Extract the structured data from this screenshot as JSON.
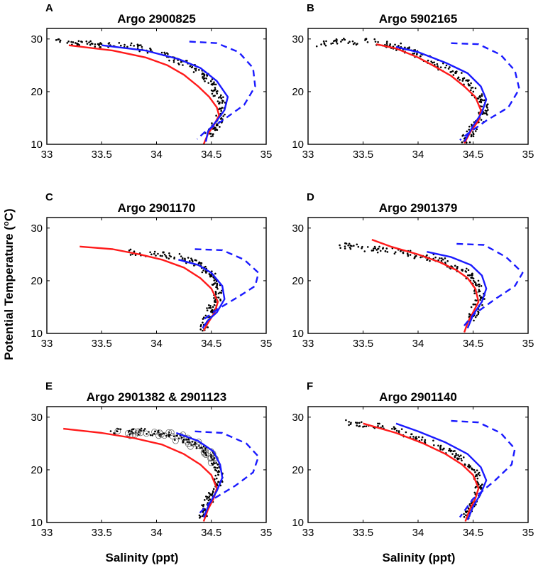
{
  "figure": {
    "ylabel_main": "Potential Temperature (",
    "ylabel_sup_o": "o",
    "ylabel_unit": "C)",
    "xlabel": "Salinity (ppt)"
  },
  "colors": {
    "red": "#ff1a1a",
    "blue": "#1a1aff",
    "dots": "#000000"
  },
  "chart_data": [
    {
      "type": "line",
      "letter": "A",
      "title": "Argo 2900825",
      "xlim": [
        33,
        35
      ],
      "ylim": [
        10,
        32
      ],
      "xticks": [
        "33",
        "33.5",
        "34",
        "34.5",
        "35"
      ],
      "xtick_values": [
        33,
        33.5,
        34,
        34.5,
        35
      ],
      "yticks": [
        "10",
        "20",
        "30"
      ],
      "ytick_values": [
        10,
        20,
        30
      ],
      "series": [
        {
          "name": "red",
          "style": "solid",
          "x": [
            33.2,
            33.6,
            33.9,
            34.1,
            34.25,
            34.38,
            34.48,
            34.55,
            34.57,
            34.52,
            34.47,
            34.43
          ],
          "y": [
            28.8,
            27.8,
            26.5,
            25.0,
            23.2,
            21.0,
            19.0,
            17.0,
            15.5,
            13.5,
            12.0,
            10.0
          ]
        },
        {
          "name": "blue",
          "style": "solid",
          "x": [
            33.5,
            33.9,
            34.2,
            34.4,
            34.55,
            34.65,
            34.62,
            34.55,
            34.47,
            34.45
          ],
          "y": [
            28.8,
            27.8,
            26.2,
            24.5,
            22.0,
            19.0,
            16.5,
            14.5,
            12.5,
            10.5
          ]
        },
        {
          "name": "blue-dashed",
          "style": "dashed",
          "x": [
            34.3,
            34.55,
            34.75,
            34.88,
            34.9,
            34.8,
            34.6,
            34.45,
            34.37
          ],
          "y": [
            29.5,
            29.2,
            27.5,
            24.5,
            21.0,
            17.5,
            14.5,
            12.5,
            11.0
          ]
        }
      ],
      "scatter": {
        "spread": 0.08,
        "markers": "dots",
        "points": [
          [
            33.05,
            29.5
          ],
          [
            33.3,
            29.3
          ],
          [
            33.5,
            29.0
          ],
          [
            33.8,
            28.5
          ],
          [
            34.0,
            27.5
          ],
          [
            34.2,
            26.0
          ],
          [
            34.35,
            24.5
          ],
          [
            34.45,
            23.0
          ],
          [
            34.52,
            21.0
          ],
          [
            34.57,
            19.0
          ],
          [
            34.6,
            17.0
          ],
          [
            34.58,
            15.0
          ],
          [
            34.53,
            13.0
          ],
          [
            34.48,
            11.5
          ]
        ]
      }
    },
    {
      "type": "line",
      "letter": "B",
      "title": "Argo 5902165",
      "xlim": [
        33,
        35
      ],
      "ylim": [
        10,
        32
      ],
      "xticks": [
        "33",
        "33.5",
        "34",
        "34.5",
        "35"
      ],
      "xtick_values": [
        33,
        33.5,
        34,
        34.5,
        35
      ],
      "yticks": [
        "10",
        "20",
        "30"
      ],
      "ytick_values": [
        10,
        20,
        30
      ],
      "series": [
        {
          "name": "red",
          "style": "solid",
          "x": [
            33.62,
            33.8,
            34.0,
            34.15,
            34.3,
            34.42,
            34.52,
            34.57,
            34.55,
            34.48,
            34.42
          ],
          "y": [
            29.0,
            28.2,
            26.5,
            24.8,
            23.0,
            21.0,
            19.0,
            16.5,
            14.5,
            12.5,
            10.2
          ]
        },
        {
          "name": "blue",
          "style": "solid",
          "x": [
            33.8,
            34.0,
            34.25,
            34.45,
            34.57,
            34.62,
            34.58,
            34.5,
            34.42
          ],
          "y": [
            28.5,
            27.5,
            25.5,
            23.5,
            21.0,
            18.5,
            16.0,
            13.5,
            10.5
          ]
        },
        {
          "name": "blue-dashed",
          "style": "dashed",
          "x": [
            34.3,
            34.55,
            34.75,
            34.88,
            34.92,
            34.82,
            34.62,
            34.45,
            34.38
          ],
          "y": [
            29.2,
            29.0,
            27.0,
            24.0,
            20.5,
            17.0,
            14.5,
            12.0,
            10.8
          ]
        }
      ],
      "scatter": {
        "spread": 0.09,
        "markers": "dots",
        "points": [
          [
            33.1,
            29.0
          ],
          [
            33.3,
            29.5
          ],
          [
            33.6,
            29.5
          ],
          [
            33.8,
            28.8
          ],
          [
            33.95,
            27.5
          ],
          [
            34.1,
            26.0
          ],
          [
            34.25,
            24.5
          ],
          [
            34.4,
            22.5
          ],
          [
            34.5,
            20.5
          ],
          [
            34.58,
            18.5
          ],
          [
            34.6,
            16.5
          ],
          [
            34.55,
            14.5
          ],
          [
            34.48,
            12.0
          ],
          [
            34.42,
            10.5
          ]
        ]
      }
    },
    {
      "type": "line",
      "letter": "C",
      "title": "Argo 2901170",
      "xlim": [
        33,
        35
      ],
      "ylim": [
        10,
        32
      ],
      "xticks": [
        "33",
        "33.5",
        "34",
        "34.5",
        "35"
      ],
      "xtick_values": [
        33,
        33.5,
        34,
        34.5,
        35
      ],
      "yticks": [
        "10",
        "20",
        "30"
      ],
      "ytick_values": [
        10,
        20,
        30
      ],
      "series": [
        {
          "name": "red",
          "style": "solid",
          "x": [
            33.3,
            33.6,
            33.85,
            34.05,
            34.25,
            34.4,
            34.5,
            34.56,
            34.53,
            34.47,
            34.43
          ],
          "y": [
            26.5,
            26.0,
            25.0,
            24.0,
            22.5,
            20.5,
            18.5,
            16.0,
            14.0,
            12.0,
            10.5
          ]
        },
        {
          "name": "blue",
          "style": "solid",
          "x": [
            34.2,
            34.38,
            34.5,
            34.6,
            34.62,
            34.55,
            34.47,
            34.42
          ],
          "y": [
            24.0,
            23.0,
            21.5,
            19.0,
            16.5,
            14.0,
            12.5,
            11.0
          ]
        },
        {
          "name": "blue-dashed",
          "style": "dashed",
          "x": [
            34.35,
            34.6,
            34.8,
            34.93,
            34.9,
            34.75,
            34.55,
            34.42
          ],
          "y": [
            26.0,
            25.8,
            24.0,
            21.5,
            19.0,
            17.0,
            14.5,
            12.5
          ]
        }
      ],
      "scatter": {
        "spread": 0.07,
        "markers": "dots",
        "points": [
          [
            33.75,
            25.5
          ],
          [
            34.0,
            25.0
          ],
          [
            34.2,
            24.5
          ],
          [
            34.35,
            23.5
          ],
          [
            34.45,
            22.0
          ],
          [
            34.52,
            20.5
          ],
          [
            34.57,
            18.5
          ],
          [
            34.55,
            16.5
          ],
          [
            34.5,
            14.5
          ],
          [
            34.45,
            12.5
          ],
          [
            34.43,
            11.0
          ]
        ]
      }
    },
    {
      "type": "line",
      "letter": "D",
      "title": "Argo 2901379",
      "xlim": [
        33,
        35
      ],
      "ylim": [
        10,
        32
      ],
      "xticks": [
        "33",
        "33.5",
        "34",
        "34.5",
        "35"
      ],
      "xtick_values": [
        33,
        33.5,
        34,
        34.5,
        35
      ],
      "yticks": [
        "10",
        "20",
        "30"
      ],
      "ytick_values": [
        10,
        20,
        30
      ],
      "series": [
        {
          "name": "red",
          "style": "solid",
          "x": [
            33.58,
            33.75,
            34.0,
            34.2,
            34.35,
            34.45,
            34.52,
            34.55,
            34.5,
            34.45,
            34.42
          ],
          "y": [
            27.8,
            26.5,
            25.0,
            23.5,
            22.0,
            20.5,
            18.5,
            16.0,
            14.0,
            12.0,
            10.2
          ]
        },
        {
          "name": "blue",
          "style": "solid",
          "x": [
            34.08,
            34.3,
            34.48,
            34.58,
            34.62,
            34.58,
            34.5,
            34.45
          ],
          "y": [
            25.5,
            24.5,
            23.0,
            21.0,
            18.5,
            16.0,
            13.5,
            11.0
          ]
        },
        {
          "name": "blue-dashed",
          "style": "dashed",
          "x": [
            34.35,
            34.6,
            34.8,
            34.95,
            34.88,
            34.7,
            34.5,
            34.4
          ],
          "y": [
            27.0,
            26.8,
            24.5,
            21.5,
            19.0,
            16.5,
            13.5,
            11.0
          ]
        }
      ],
      "scatter": {
        "spread": 0.08,
        "markers": "dots",
        "points": [
          [
            33.3,
            26.8
          ],
          [
            33.5,
            26.2
          ],
          [
            33.7,
            25.8
          ],
          [
            33.9,
            25.2
          ],
          [
            34.1,
            24.5
          ],
          [
            34.25,
            23.5
          ],
          [
            34.4,
            22.0
          ],
          [
            34.5,
            20.5
          ],
          [
            34.55,
            18.5
          ],
          [
            34.57,
            16.5
          ],
          [
            34.52,
            14.5
          ],
          [
            34.47,
            12.5
          ]
        ]
      }
    },
    {
      "type": "line",
      "letter": "E",
      "title": "Argo 2901382 & 2901123",
      "xlim": [
        33,
        35
      ],
      "ylim": [
        10,
        32
      ],
      "xticks": [
        "33",
        "33.5",
        "34",
        "34.5",
        "35"
      ],
      "xtick_values": [
        33,
        33.5,
        34,
        34.5,
        35
      ],
      "yticks": [
        "10",
        "20",
        "30"
      ],
      "ytick_values": [
        10,
        20,
        30
      ],
      "series": [
        {
          "name": "red",
          "style": "solid",
          "x": [
            33.15,
            33.5,
            33.8,
            34.05,
            34.25,
            34.4,
            34.5,
            34.55,
            34.52,
            34.47,
            34.43
          ],
          "y": [
            27.8,
            27.0,
            26.0,
            24.8,
            23.0,
            21.0,
            19.0,
            16.5,
            14.5,
            12.5,
            10.2
          ]
        },
        {
          "name": "blue",
          "style": "solid",
          "x": [
            34.18,
            34.38,
            34.52,
            34.58,
            34.6,
            34.55,
            34.48,
            34.43
          ],
          "y": [
            27.0,
            25.5,
            23.5,
            21.0,
            18.5,
            16.0,
            13.5,
            11.0
          ]
        },
        {
          "name": "blue-dashed",
          "style": "dashed",
          "x": [
            34.35,
            34.6,
            34.82,
            34.93,
            34.88,
            34.72,
            34.52,
            34.38
          ],
          "y": [
            27.3,
            27.0,
            25.0,
            22.5,
            19.5,
            17.0,
            14.5,
            11.5
          ]
        }
      ],
      "scatter": {
        "spread": 0.08,
        "markers": "dots-and-circles",
        "points": [
          [
            33.6,
            27.2
          ],
          [
            33.8,
            27.3
          ],
          [
            34.0,
            27.0
          ],
          [
            34.15,
            26.5
          ],
          [
            34.3,
            25.5
          ],
          [
            34.42,
            24.0
          ],
          [
            34.5,
            22.5
          ],
          [
            34.55,
            20.5
          ],
          [
            34.57,
            18.5
          ],
          [
            34.53,
            16.5
          ],
          [
            34.48,
            14.5
          ],
          [
            34.44,
            12.5
          ],
          [
            34.42,
            11.0
          ]
        ]
      }
    },
    {
      "type": "line",
      "letter": "F",
      "title": "Argo 2901140",
      "xlim": [
        33,
        35
      ],
      "ylim": [
        10,
        32
      ],
      "xticks": [
        "33",
        "33.5",
        "34",
        "34.5",
        "35"
      ],
      "xtick_values": [
        33,
        33.5,
        34,
        34.5,
        35
      ],
      "yticks": [
        "10",
        "20",
        "30"
      ],
      "ytick_values": [
        10,
        20,
        30
      ],
      "series": [
        {
          "name": "red",
          "style": "solid",
          "x": [
            33.5,
            33.8,
            34.05,
            34.25,
            34.4,
            34.5,
            34.55,
            34.52,
            34.47,
            34.43
          ],
          "y": [
            28.8,
            27.0,
            25.0,
            23.0,
            21.0,
            19.0,
            16.5,
            14.5,
            12.5,
            10.2
          ]
        },
        {
          "name": "blue",
          "style": "solid",
          "x": [
            33.8,
            34.0,
            34.25,
            34.45,
            34.57,
            34.62,
            34.57,
            34.5,
            34.45
          ],
          "y": [
            28.8,
            27.3,
            25.2,
            23.0,
            20.5,
            18.0,
            15.5,
            13.0,
            10.5
          ]
        },
        {
          "name": "blue-dashed",
          "style": "dashed",
          "x": [
            34.3,
            34.55,
            34.75,
            34.88,
            34.85,
            34.7,
            34.5,
            34.38
          ],
          "y": [
            29.3,
            29.0,
            27.0,
            24.0,
            21.0,
            18.0,
            14.5,
            11.0
          ]
        }
      ],
      "scatter": {
        "spread": 0.06,
        "markers": "dots",
        "points": [
          [
            33.35,
            29.0
          ],
          [
            33.55,
            28.6
          ],
          [
            33.8,
            27.5
          ],
          [
            34.0,
            26.0
          ],
          [
            34.2,
            24.5
          ],
          [
            34.35,
            22.8
          ],
          [
            34.47,
            21.0
          ],
          [
            34.53,
            19.0
          ],
          [
            34.56,
            17.0
          ],
          [
            34.53,
            15.0
          ],
          [
            34.48,
            13.0
          ],
          [
            34.44,
            11.0
          ]
        ]
      }
    }
  ]
}
